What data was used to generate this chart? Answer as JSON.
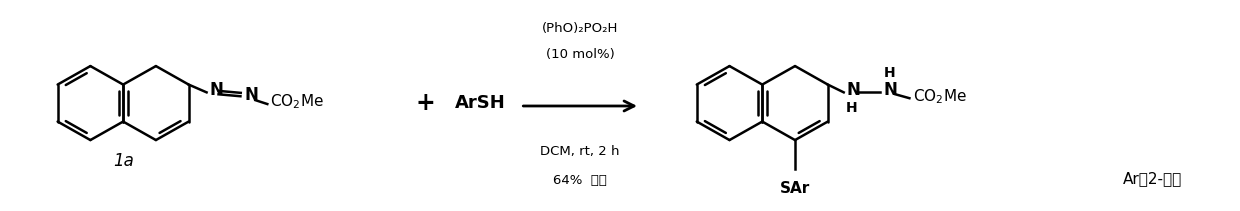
{
  "bg_color": "#ffffff",
  "lc": "#000000",
  "lw": 1.8,
  "fw": 12.4,
  "fh": 2.11,
  "dpi": 100,
  "label_1a": "1a",
  "reagent1": "(PhO)₂PO₂H",
  "reagent2": "(10 mol%)",
  "reagent3": "DCM, rt, 2 h",
  "reagent4": "64%  收率",
  "plus": "+",
  "arsh": "ArSH",
  "sar_label": "SAr",
  "co2me_reactant": "CO₂Me",
  "co2me_product": "CO₂Me",
  "note": "Ar为2-萄基",
  "fs_main": 11,
  "fs_label": 12,
  "fs_small": 10,
  "fs_reagent": 9.5,
  "fs_note": 11
}
